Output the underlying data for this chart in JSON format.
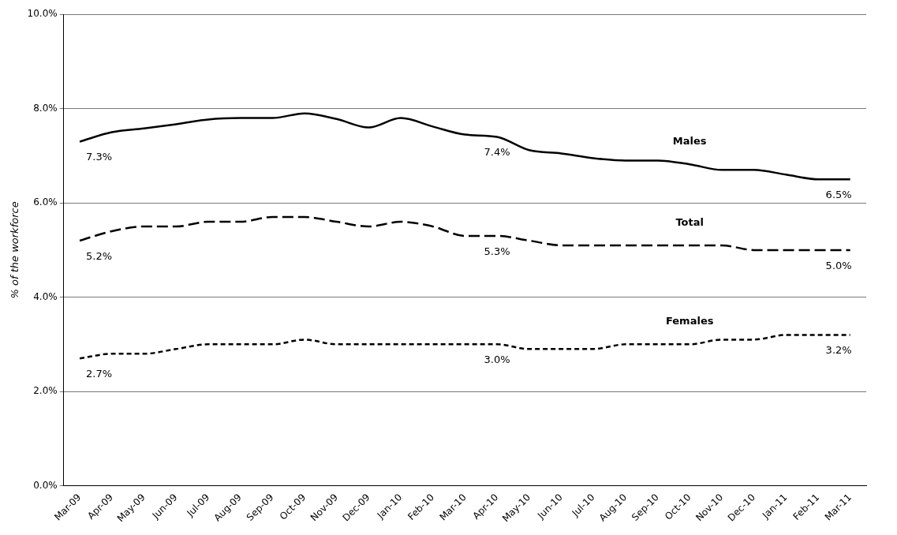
{
  "chart_data": {
    "type": "line",
    "ylabel": "% of the workforce",
    "categories": [
      "Mar-09",
      "Apr-09",
      "May-09",
      "Jun-09",
      "Jul-09",
      "Aug-09",
      "Sep-09",
      "Oct-09",
      "Nov-09",
      "Dec-09",
      "Jan-10",
      "Feb-10",
      "Mar-10",
      "Apr-10",
      "May-10",
      "Jun-10",
      "Jul-10",
      "Aug-10",
      "Sep-10",
      "Oct-10",
      "Nov-10",
      "Dec-10",
      "Jan-11",
      "Feb-11",
      "Mar-11"
    ],
    "series": [
      {
        "name": "Males",
        "color": "#000000",
        "line_style": "solid",
        "values": [
          7.3,
          7.5,
          7.58,
          7.67,
          7.77,
          7.8,
          7.8,
          7.9,
          7.78,
          7.6,
          7.8,
          7.62,
          7.45,
          7.4,
          7.12,
          7.05,
          6.95,
          6.9,
          6.9,
          6.82,
          6.7,
          6.7,
          6.6,
          6.5,
          6.5
        ],
        "value_labels": [
          "7.3%",
          null,
          null,
          null,
          null,
          null,
          null,
          null,
          null,
          null,
          null,
          null,
          null,
          "7.4%",
          null,
          null,
          null,
          null,
          null,
          null,
          null,
          null,
          null,
          null,
          "6.5%"
        ]
      },
      {
        "name": "Total",
        "color": "#000000",
        "line_style": "dashed",
        "values": [
          5.2,
          5.4,
          5.5,
          5.5,
          5.6,
          5.6,
          5.7,
          5.7,
          5.6,
          5.5,
          5.6,
          5.5,
          5.3,
          5.3,
          5.2,
          5.1,
          5.1,
          5.1,
          5.1,
          5.1,
          5.1,
          5.0,
          5.0,
          5.0,
          5.0
        ],
        "value_labels": [
          "5.2%",
          null,
          null,
          null,
          null,
          null,
          null,
          null,
          null,
          null,
          null,
          null,
          null,
          "5.3%",
          null,
          null,
          null,
          null,
          null,
          null,
          null,
          null,
          null,
          null,
          "5.0%"
        ]
      },
      {
        "name": "Females",
        "color": "#000000",
        "line_style": "dotted",
        "values": [
          2.7,
          2.8,
          2.8,
          2.9,
          3.0,
          3.0,
          3.0,
          3.1,
          3.0,
          3.0,
          3.0,
          3.0,
          3.0,
          3.0,
          2.9,
          2.9,
          2.9,
          3.0,
          3.0,
          3.0,
          3.1,
          3.1,
          3.2,
          3.2,
          3.2
        ],
        "value_labels": [
          "2.7%",
          null,
          null,
          null,
          null,
          null,
          null,
          null,
          null,
          null,
          null,
          null,
          null,
          "3.0%",
          null,
          null,
          null,
          null,
          null,
          null,
          null,
          null,
          null,
          null,
          "3.2%"
        ]
      }
    ],
    "ylim": [
      0,
      10
    ],
    "yticks": [
      {
        "value": 0,
        "label": "0.0%"
      },
      {
        "value": 2,
        "label": "2.0%"
      },
      {
        "value": 4,
        "label": "4.0%"
      },
      {
        "value": 6,
        "label": "6.0%"
      },
      {
        "value": 8,
        "label": "8.0%"
      },
      {
        "value": 10,
        "label": "10.0%"
      }
    ],
    "grid": "y",
    "legend": false,
    "marker": "none"
  }
}
